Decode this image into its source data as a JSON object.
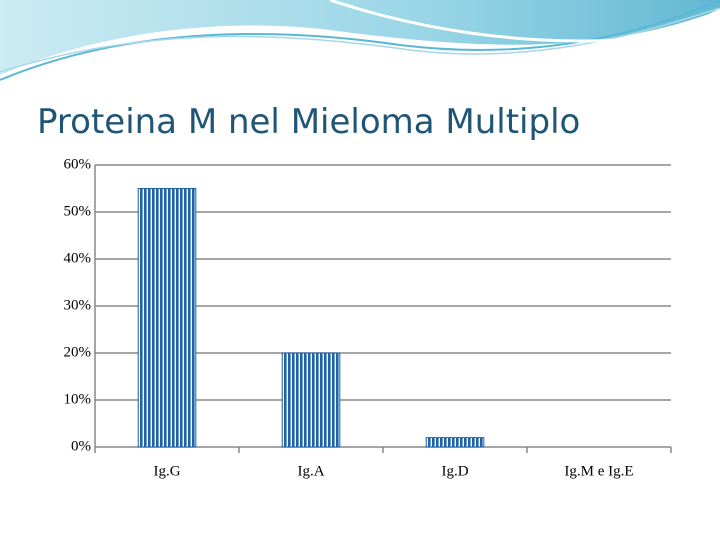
{
  "chart_data": {
    "type": "bar",
    "title": "Proteina M nel Mieloma Multiplo",
    "categories": [
      "Ig.G",
      "Ig.A",
      "Ig.D",
      "Ig.M e Ig.E"
    ],
    "values": [
      55,
      20,
      2,
      0
    ],
    "color": "#1f64a8",
    "ylim": [
      0,
      60
    ],
    "yticks": [
      {
        "value": 0,
        "label": "0%"
      },
      {
        "value": 10,
        "label": "10%"
      },
      {
        "value": 20,
        "label": "20%"
      },
      {
        "value": 30,
        "label": "30%"
      },
      {
        "value": 40,
        "label": "40%"
      },
      {
        "value": 50,
        "label": "50%"
      },
      {
        "value": 60,
        "label": "60%"
      }
    ],
    "grid": true
  }
}
